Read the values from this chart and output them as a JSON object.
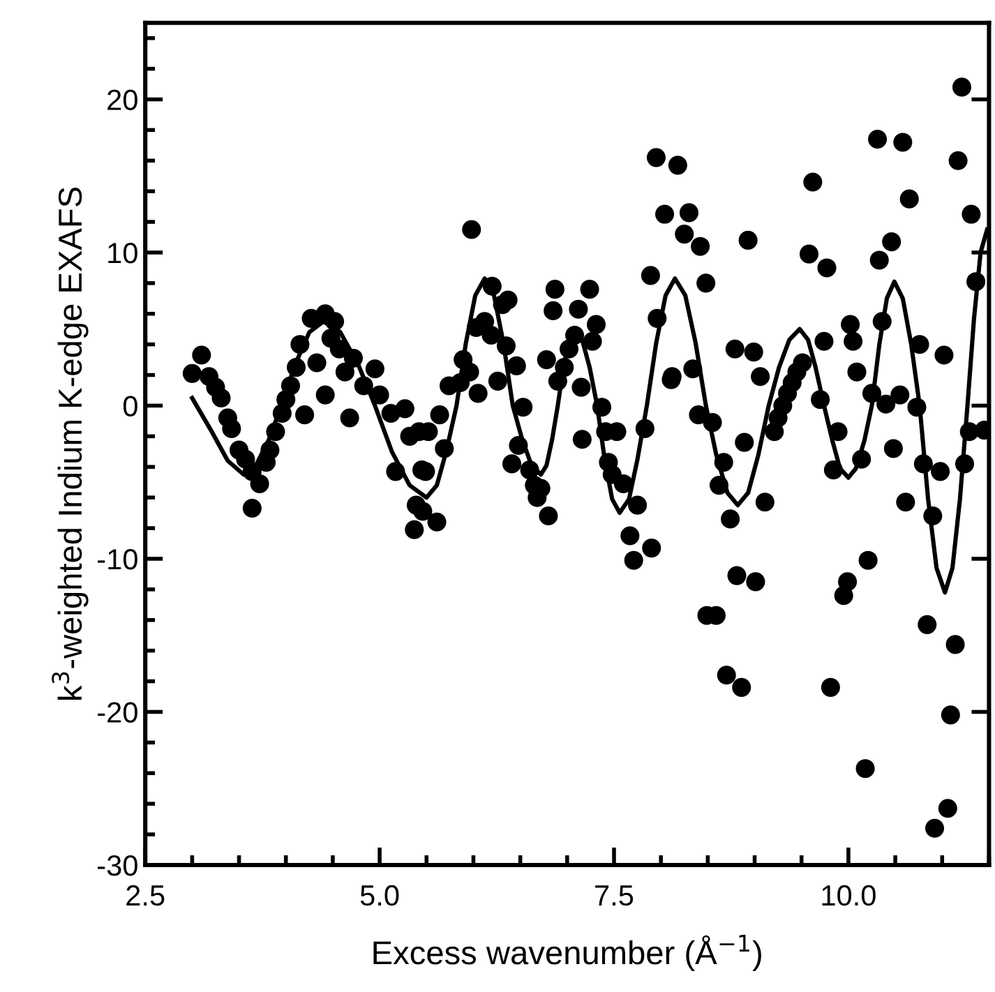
{
  "chart_data": {
    "type": "scatter",
    "xlabel": "Excess wavenumber (Å$^{−1}$)",
    "ylabel": "k$^{3}$-weighted Indium K-edge EXAFS",
    "xlim": [
      2.5,
      11.5
    ],
    "ylim": [
      -30,
      25
    ],
    "xticks": [
      {
        "value": 2.5,
        "label": "2.5"
      },
      {
        "value": 5.0,
        "label": "5.0"
      },
      {
        "value": 7.5,
        "label": "7.5"
      },
      {
        "value": 10.0,
        "label": "10.0"
      }
    ],
    "yticks": [
      -30,
      -20,
      -10,
      0,
      10,
      20
    ],
    "series": [
      {
        "marker": "circle",
        "color": "#000000",
        "x": [
          3.0,
          3.1,
          3.18,
          3.25,
          3.31,
          3.38,
          3.42,
          3.5,
          3.57,
          3.64,
          3.72,
          3.64,
          3.79,
          3.83,
          3.89,
          3.96,
          4.0,
          4.05,
          4.11,
          4.15,
          4.27,
          4.42,
          4.52,
          4.48,
          4.33,
          4.2,
          4.42,
          4.57,
          4.72,
          4.63,
          4.68,
          4.83,
          4.95,
          5.0,
          5.12,
          5.27,
          5.32,
          5.17,
          5.42,
          5.45,
          5.39,
          5.37,
          5.98,
          5.52,
          5.69,
          5.49,
          5.46,
          5.61,
          5.64,
          5.74,
          5.89,
          5.86,
          6.05,
          5.96,
          6.03,
          6.12,
          6.2,
          6.37,
          6.31,
          6.19,
          6.35,
          6.46,
          6.26,
          6.53,
          6.48,
          6.41,
          6.6,
          6.65,
          6.72,
          6.68,
          6.8,
          6.87,
          6.85,
          6.78,
          6.9,
          6.97,
          7.02,
          7.08,
          7.12,
          7.24,
          7.31,
          7.27,
          7.15,
          7.16,
          7.37,
          7.41,
          7.53,
          7.44,
          7.48,
          7.6,
          7.75,
          7.83,
          7.96,
          8.11,
          7.89,
          8.04,
          7.95,
          8.18,
          8.12,
          8.34,
          8.4,
          8.55,
          8.67,
          8.62,
          8.74,
          8.3,
          8.25,
          8.42,
          8.48,
          8.93,
          8.89,
          9.11,
          8.79,
          8.99,
          9.06,
          9.21,
          9.25,
          9.3,
          9.35,
          9.4,
          9.45,
          9.51,
          9.62,
          9.58,
          9.77,
          9.74,
          9.7,
          9.89,
          9.84,
          10.02,
          10.05,
          10.09,
          10.14,
          10.25,
          10.31,
          10.58,
          10.65,
          10.46,
          10.33,
          10.36,
          10.4,
          10.55,
          10.73,
          10.76,
          11.02,
          10.48,
          10.61,
          10.8,
          10.98,
          10.9,
          11.21,
          11.17,
          11.31,
          11.36,
          11.29,
          11.24,
          11.45,
          7.67,
          7.71,
          7.9,
          8.49,
          8.59,
          8.81,
          9.01,
          8.7,
          8.86,
          9.81,
          9.95,
          9.99,
          10.21,
          10.18,
          10.84,
          11.14,
          11.09,
          11.06,
          10.92
        ],
        "values": [
          2.1,
          3.3,
          1.9,
          1.2,
          0.5,
          -0.8,
          -1.5,
          -2.9,
          -3.5,
          -4.3,
          -5.1,
          -6.7,
          -3.7,
          -2.9,
          -1.7,
          -0.5,
          0.4,
          1.3,
          2.5,
          4.0,
          5.7,
          6.0,
          5.5,
          4.4,
          2.8,
          -0.6,
          0.7,
          3.7,
          3.1,
          2.2,
          -0.8,
          1.3,
          2.4,
          0.7,
          -0.5,
          -0.2,
          -2.0,
          -4.3,
          -1.7,
          -4.2,
          -6.5,
          -8.1,
          11.5,
          -1.7,
          -2.8,
          -4.3,
          -6.9,
          -7.6,
          -0.6,
          1.3,
          3.0,
          1.5,
          0.8,
          2.2,
          5.1,
          5.5,
          7.8,
          6.9,
          6.6,
          4.6,
          3.9,
          2.6,
          1.6,
          -0.1,
          -2.6,
          -3.8,
          -4.2,
          -5.2,
          -5.4,
          -6.0,
          -7.2,
          7.6,
          6.2,
          3.0,
          1.6,
          2.5,
          3.7,
          4.6,
          6.3,
          7.6,
          5.3,
          4.2,
          1.2,
          -2.2,
          -0.1,
          -1.7,
          -1.7,
          -3.7,
          -4.5,
          -5.1,
          -6.5,
          -1.5,
          5.7,
          1.7,
          8.5,
          12.5,
          16.2,
          15.7,
          1.9,
          2.4,
          -0.6,
          -1.1,
          -3.7,
          -5.2,
          -7.4,
          12.6,
          11.2,
          10.4,
          8.0,
          10.8,
          -2.4,
          -6.3,
          3.7,
          3.5,
          1.9,
          -1.7,
          -0.8,
          0.0,
          0.8,
          1.5,
          2.2,
          2.8,
          14.6,
          9.9,
          9.0,
          4.2,
          0.4,
          -1.7,
          -4.2,
          5.3,
          4.2,
          2.2,
          -3.5,
          0.8,
          17.4,
          17.2,
          13.5,
          10.7,
          9.5,
          5.5,
          0.1,
          0.7,
          -0.1,
          4.0,
          3.3,
          -2.8,
          -6.3,
          -3.8,
          -4.3,
          -7.2,
          20.8,
          16.0,
          12.5,
          8.1,
          -1.7,
          -3.8,
          -1.6,
          -8.5,
          -10.1,
          -9.3,
          -13.7,
          -13.7,
          -11.1,
          -11.5,
          -17.6,
          -18.4,
          -18.4,
          -12.4,
          -11.5,
          -10.1,
          -23.7,
          -14.3,
          -15.6,
          -20.2,
          -26.3,
          -27.6
        ]
      },
      {
        "type": "line",
        "marker": "none",
        "line_style": "solid",
        "color": "#000000",
        "x": [
          3.0,
          3.2,
          3.38,
          3.55,
          3.68,
          3.82,
          3.95,
          4.1,
          4.25,
          4.4,
          4.58,
          4.77,
          4.95,
          5.13,
          5.32,
          5.5,
          5.61,
          5.71,
          5.82,
          5.92,
          6.02,
          6.12,
          6.22,
          6.32,
          6.42,
          6.52,
          6.62,
          6.72,
          6.78,
          6.84,
          6.9,
          6.96,
          7.02,
          7.08,
          7.16,
          7.24,
          7.32,
          7.4,
          7.48,
          7.56,
          7.66,
          7.75,
          7.85,
          7.95,
          8.05,
          8.15,
          8.26,
          8.37,
          8.48,
          8.59,
          8.71,
          8.82,
          8.93,
          9.04,
          9.15,
          9.26,
          9.37,
          9.48,
          9.57,
          9.65,
          9.74,
          9.83,
          9.91,
          10.0,
          10.08,
          10.17,
          10.25,
          10.33,
          10.41,
          10.49,
          10.58,
          10.67,
          10.76,
          10.85,
          10.94,
          11.03,
          11.11,
          11.19,
          11.27,
          11.34,
          11.41,
          11.48
        ],
        "values": [
          0.5,
          -1.6,
          -3.6,
          -4.5,
          -3.9,
          -2.2,
          0,
          2.7,
          4.8,
          5.5,
          4.8,
          2.7,
          0,
          -3.0,
          -5.2,
          -6.0,
          -5.2,
          -3.0,
          0,
          4.1,
          7.2,
          8.3,
          7.2,
          4.1,
          0,
          -2.2,
          -3.9,
          -4.5,
          -3.9,
          -2.2,
          0,
          2.5,
          4.3,
          5.0,
          4.3,
          2.5,
          0,
          -3.5,
          -6.1,
          -7.0,
          -6.1,
          -3.5,
          0,
          4.1,
          7.2,
          8.3,
          7.2,
          4.1,
          0,
          -3.2,
          -5.7,
          -6.5,
          -5.7,
          -3.2,
          0,
          2.5,
          4.3,
          5.0,
          4.3,
          2.5,
          0,
          -2.3,
          -4.1,
          -4.7,
          -4.1,
          -2.3,
          0,
          4.0,
          7.0,
          8.1,
          7.0,
          4.0,
          0,
          -6.1,
          -10.6,
          -12.2,
          -10.6,
          -6.1,
          0,
          5.7,
          10.0,
          11.5
        ]
      }
    ]
  }
}
